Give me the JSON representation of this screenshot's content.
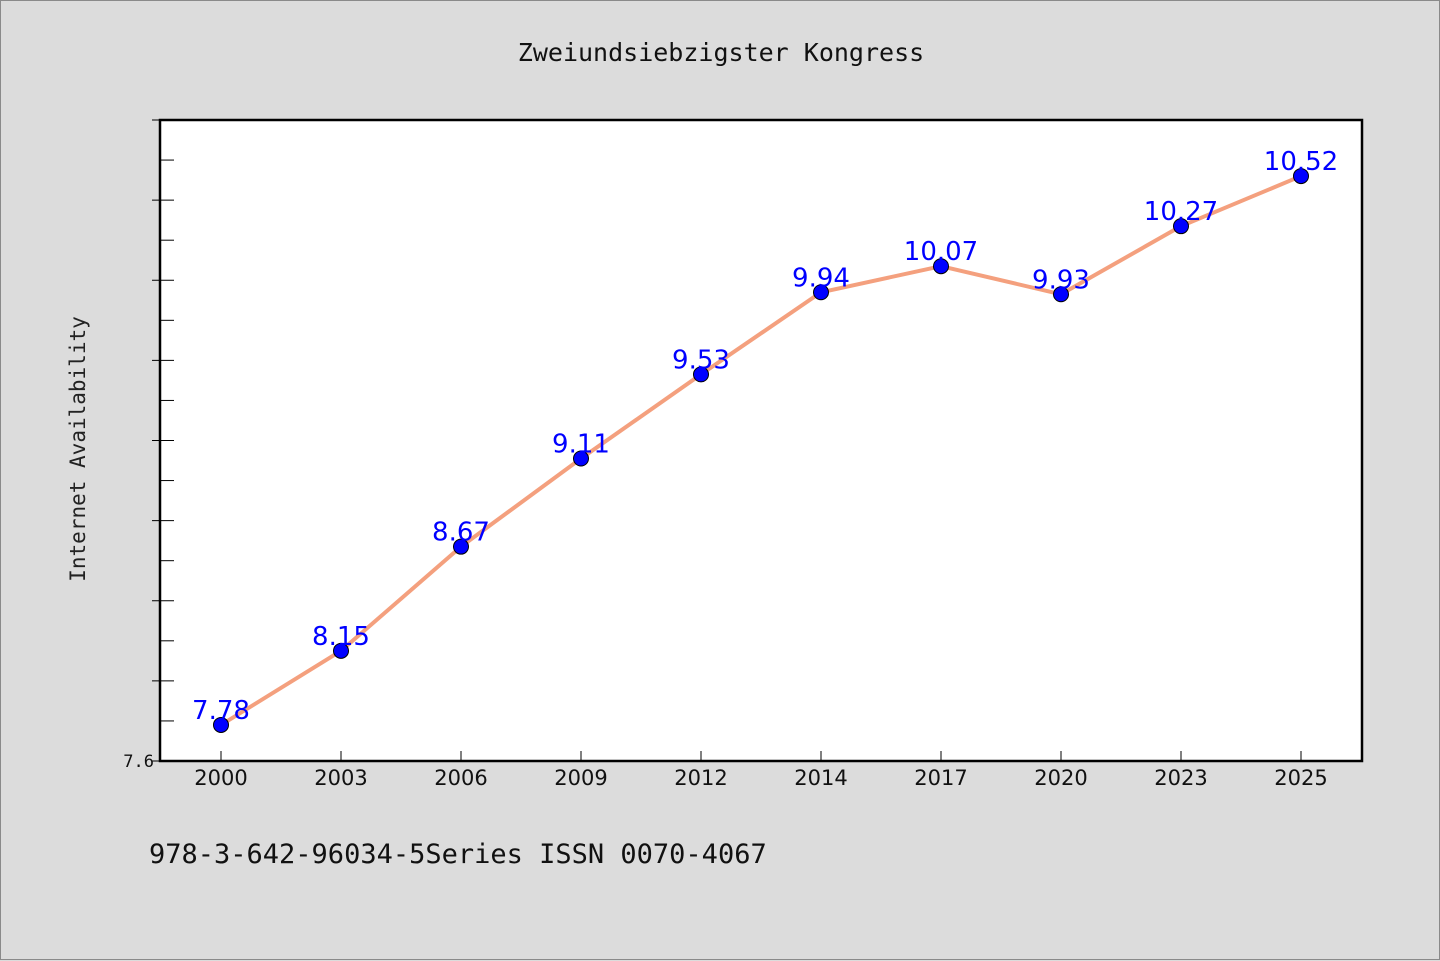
{
  "chart_data": {
    "type": "line",
    "title": "Zweiundsiebzigster Kongress",
    "xlabel": "",
    "ylabel": "Internet Availability",
    "categories": [
      "2000",
      "2003",
      "2006",
      "2009",
      "2012",
      "2014",
      "2017",
      "2020",
      "2023",
      "2025"
    ],
    "series": [
      {
        "values": [
          7.78,
          8.15,
          8.67,
          9.11,
          9.53,
          9.94,
          10.07,
          9.93,
          10.27,
          10.52
        ]
      }
    ],
    "ylim": [
      7.6,
      10.8
    ],
    "y_tick_labels": [
      "7.6"
    ],
    "grid": false,
    "colors": {
      "line": "#f4a07e",
      "marker": "#0000ff",
      "labels": "#0000ff",
      "background": "#dcdcdc",
      "plot": "#ffffff"
    }
  },
  "footer": {
    "text": "978-3-642-96034-5Series ISSN 0070-4067"
  }
}
